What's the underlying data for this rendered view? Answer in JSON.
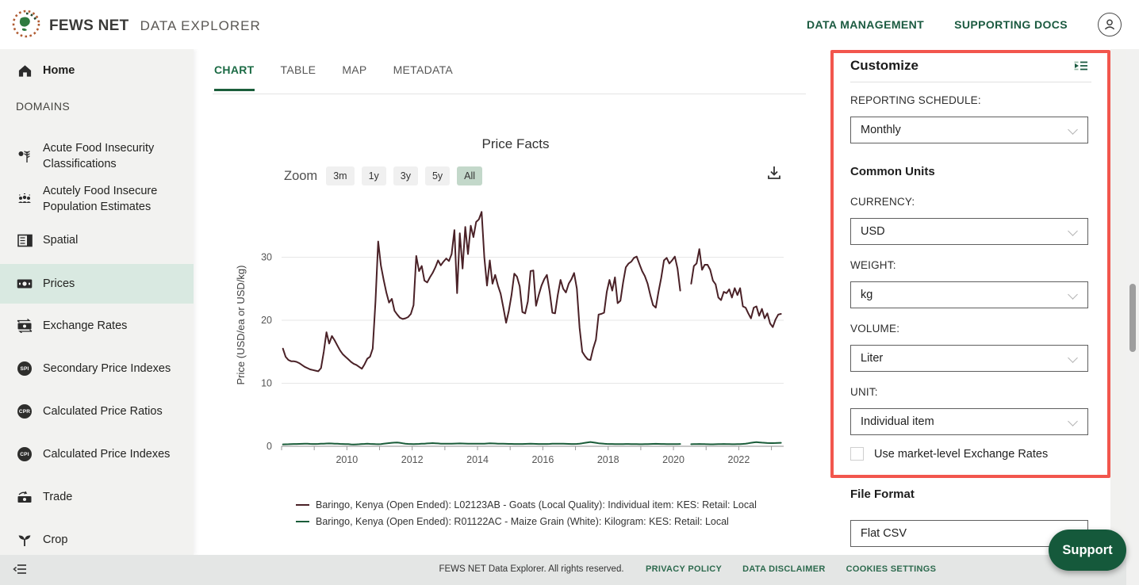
{
  "header": {
    "brand": "FEWS NET",
    "brand_suffix": "DATA EXPLORER",
    "nav": [
      {
        "label": "DATA MANAGEMENT"
      },
      {
        "label": "SUPPORTING DOCS"
      }
    ]
  },
  "sidebar": {
    "home_label": "Home",
    "section_label": "DOMAINS",
    "items": [
      {
        "label": "Acute Food Insecurity Classifications"
      },
      {
        "label": "Acutely Food Insecure Population Estimates"
      },
      {
        "label": "Spatial"
      },
      {
        "label": "Prices",
        "selected": true
      },
      {
        "label": "Exchange Rates"
      },
      {
        "label": "Secondary Price Indexes",
        "badge": "SPI"
      },
      {
        "label": "Calculated Price Ratios",
        "badge": "CPR"
      },
      {
        "label": "Calculated Price Indexes",
        "badge": "CPI"
      },
      {
        "label": "Trade"
      },
      {
        "label": "Crop"
      }
    ]
  },
  "tabs": {
    "items": [
      {
        "label": "CHART",
        "active": true
      },
      {
        "label": "TABLE"
      },
      {
        "label": "MAP"
      },
      {
        "label": "METADATA"
      }
    ]
  },
  "chart_toolbar": {
    "zoom_label": "Zoom",
    "ranges": [
      "3m",
      "1y",
      "3y",
      "5y",
      "All"
    ],
    "active_range": "All"
  },
  "chart_data": {
    "type": "line",
    "title": "Price Facts",
    "ylabel": "Price (USD/ea or USD/kg)",
    "ylim": [
      0,
      40
    ],
    "yticks": [
      0,
      10,
      20,
      30
    ],
    "grid": true,
    "legend_position": "bottom",
    "frequency": "monthly",
    "start_year": 2008,
    "start_month": 1,
    "x_range": [
      2008.0,
      2023.4
    ],
    "x_tick_years": [
      2010,
      2012,
      2014,
      2016,
      2018,
      2020,
      2022
    ],
    "gap_note": "both series have missing data Apr-Jun 2020",
    "series": [
      {
        "label": "Baringo, Kenya (Open Ended): L02123AB - Goats (Local Quality): Individual item: KES: Retail: Local",
        "color": "#4a2127",
        "values": [
          15.5,
          14.2,
          13.7,
          13.5,
          13.5,
          13.4,
          13.2,
          12.9,
          12.6,
          12.4,
          12.2,
          12.1,
          12.0,
          11.9,
          12.4,
          15.0,
          18.1,
          16.3,
          17.5,
          16.8,
          16.0,
          15.2,
          14.6,
          14.2,
          13.8,
          13.4,
          13.1,
          12.9,
          12.6,
          12.3,
          13.0,
          13.9,
          14.2,
          15.5,
          23.0,
          32.5,
          28.7,
          26.4,
          24.4,
          22.8,
          23.4,
          21.5,
          20.9,
          20.4,
          20.2,
          20.3,
          20.5,
          21.0,
          22.4,
          30.2,
          27.8,
          28.6,
          26.3,
          26.0,
          26.8,
          27.5,
          28.4,
          29.5,
          28.7,
          29.3,
          29.8,
          29.4,
          30.5,
          34.3,
          24.3,
          33.8,
          28.2,
          34.8,
          30.5,
          35.0,
          33.2,
          35.6,
          36.0,
          37.2,
          30.0,
          25.5,
          29.5,
          25.8,
          27.2,
          25.5,
          24.2,
          22.0,
          19.6,
          21.5,
          24.0,
          27.4,
          26.9,
          25.4,
          21.3,
          21.1,
          23.0,
          27.8,
          27.9,
          22.3,
          24.0,
          25.5,
          26.5,
          27.2,
          24.5,
          21.2,
          21.1,
          24.0,
          26.4,
          25.0,
          24.4,
          25.8,
          26.5,
          27.5,
          25.0,
          18.8,
          15.0,
          14.3,
          13.8,
          13.7,
          15.5,
          16.9,
          20.9,
          21.0,
          21.2,
          24.5,
          26.4,
          24.7,
          26.8,
          22.7,
          23.1,
          26.0,
          28.4,
          29.0,
          29.3,
          29.9,
          30.1,
          28.9,
          27.8,
          27.0,
          25.8,
          24.0,
          22.4,
          22.0,
          24.5,
          26.7,
          29.5,
          29.9,
          29.0,
          29.5,
          30.1,
          28.2,
          24.7,
          null,
          null,
          null,
          25.8,
          28.6,
          29.0,
          31.3,
          28.0,
          28.8,
          28.8,
          28.0,
          26.3,
          25.7,
          23.6,
          23.2,
          24.5,
          24.3,
          24.9,
          23.6,
          25.1,
          24.0,
          25.1,
          22.2,
          22.0,
          21.1,
          20.3,
          22.0,
          22.2,
          20.7,
          21.8,
          20.3,
          21.1,
          19.5,
          18.9,
          20.1,
          20.9,
          21.0
        ]
      },
      {
        "label": "Baringo, Kenya (Open Ended): R01122AC - Maize Grain (White): Kilogram: KES: Retail: Local",
        "color": "#1a5c39",
        "values": [
          0.3,
          0.31,
          0.33,
          0.35,
          0.36,
          0.37,
          0.38,
          0.39,
          0.4,
          0.4,
          0.38,
          0.36,
          0.36,
          0.38,
          0.4,
          0.42,
          0.44,
          0.45,
          0.44,
          0.42,
          0.4,
          0.38,
          0.36,
          0.35,
          0.34,
          0.3,
          0.28,
          0.3,
          0.33,
          0.36,
          0.38,
          0.4,
          0.38,
          0.36,
          0.34,
          0.33,
          0.35,
          0.4,
          0.45,
          0.5,
          0.55,
          0.58,
          0.6,
          0.55,
          0.48,
          0.42,
          0.38,
          0.36,
          0.35,
          0.36,
          0.38,
          0.4,
          0.42,
          0.45,
          0.48,
          0.5,
          0.48,
          0.45,
          0.42,
          0.4,
          0.4,
          0.41,
          0.42,
          0.43,
          0.44,
          0.45,
          0.44,
          0.43,
          0.42,
          0.41,
          0.4,
          0.4,
          0.4,
          0.41,
          0.42,
          0.44,
          0.46,
          0.45,
          0.44,
          0.42,
          0.41,
          0.4,
          0.39,
          0.38,
          0.38,
          0.37,
          0.36,
          0.36,
          0.37,
          0.38,
          0.39,
          0.4,
          0.39,
          0.38,
          0.37,
          0.36,
          0.36,
          0.37,
          0.38,
          0.4,
          0.41,
          0.42,
          0.41,
          0.4,
          0.39,
          0.38,
          0.37,
          0.37,
          0.38,
          0.42,
          0.48,
          0.55,
          0.62,
          0.68,
          0.62,
          0.55,
          0.48,
          0.44,
          0.4,
          0.38,
          0.37,
          0.36,
          0.35,
          0.34,
          0.34,
          0.35,
          0.36,
          0.36,
          0.35,
          0.34,
          0.34,
          0.33,
          0.33,
          0.34,
          0.35,
          0.37,
          0.38,
          0.39,
          0.38,
          0.37,
          0.36,
          0.35,
          0.34,
          0.34,
          0.34,
          0.35,
          0.36,
          null,
          null,
          null,
          0.33,
          0.34,
          0.35,
          0.36,
          0.35,
          0.34,
          0.33,
          0.32,
          0.32,
          0.33,
          0.34,
          0.35,
          0.36,
          0.35,
          0.34,
          0.33,
          0.33,
          0.34,
          0.35,
          0.38,
          0.42,
          0.48,
          0.55,
          0.62,
          0.66,
          0.62,
          0.58,
          0.55,
          0.52,
          0.5,
          0.5,
          0.52,
          0.54,
          0.55
        ]
      }
    ]
  },
  "customize": {
    "title": "Customize",
    "fields": [
      {
        "label": "REPORTING SCHEDULE:",
        "value": "Monthly"
      },
      {
        "label": "CURRENCY:",
        "value": "USD"
      },
      {
        "label": "WEIGHT:",
        "value": "kg"
      },
      {
        "label": "VOLUME:",
        "value": "Liter"
      },
      {
        "label": "UNIT:",
        "value": "Individual item"
      }
    ],
    "common_units_heading": "Common Units",
    "checkbox_label": "Use market-level Exchange Rates",
    "checkbox_checked": false,
    "file_format_heading": "File Format",
    "file_format_value": "Flat CSV"
  },
  "support": {
    "label": "Support"
  },
  "footer": {
    "copyright": "FEWS NET Data Explorer. All rights reserved.",
    "links": [
      "PRIVACY POLICY",
      "DATA DISCLAIMER",
      "COOKIES SETTINGS"
    ]
  },
  "colors": {
    "accent_green": "#1b5a40",
    "selected_row_bg": "#d9e9e1",
    "annotation_red": "#f2564d",
    "support_bg": "#15593b",
    "goats_line": "#4a2127",
    "maize_line": "#1a5c39"
  }
}
